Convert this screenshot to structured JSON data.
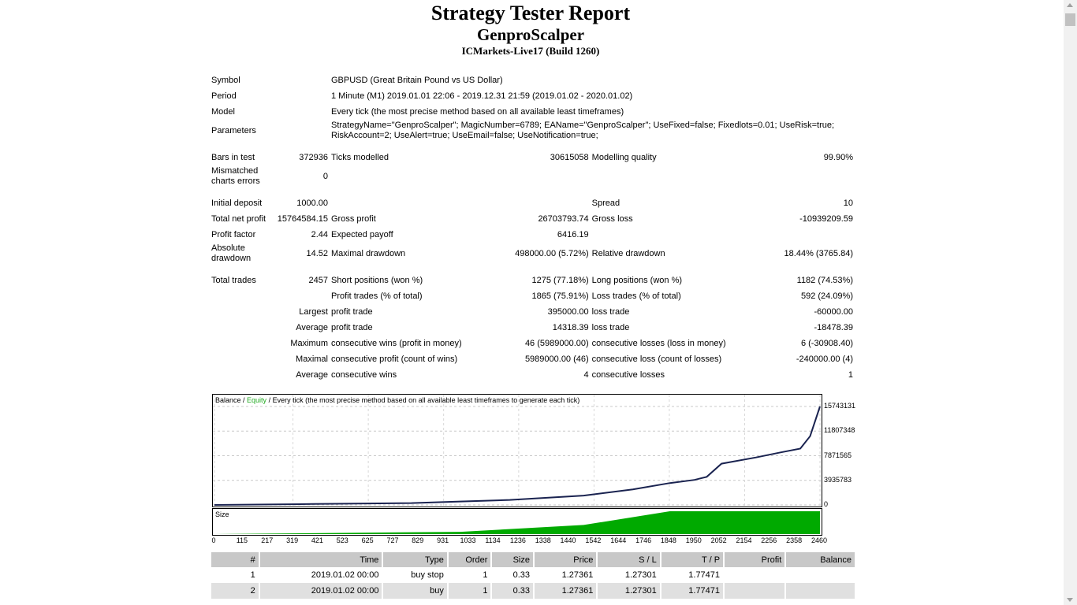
{
  "header": {
    "title": "Strategy Tester Report",
    "expert": "GenproScalper",
    "server": "ICMarkets-Live17 (Build 1260)"
  },
  "info": {
    "symbol_label": "Symbol",
    "symbol_value": "GBPUSD (Great Britain Pound vs US Dollar)",
    "period_label": "Period",
    "period_value": "1 Minute (M1) 2019.01.01 22:06 - 2019.12.31 21:59 (2019.01.02 - 2020.01.02)",
    "model_label": "Model",
    "model_value": "Every tick (the most precise method based on all available least timeframes)",
    "params_label": "Parameters",
    "params_value": "StrategyName=\"GenproScalper\"; MagicNumber=6789; EAName=\"GenproScalper\"; UseFixed=false; Fixedlots=0.01; UseRisk=true; RiskAccount=2; UseAlert=true; UseEmail=false; UseNotification=true;"
  },
  "stats": {
    "bars_label": "Bars in test",
    "bars": "372936",
    "ticks_label": "Ticks modelled",
    "ticks": "30615058",
    "quality_label": "Modelling quality",
    "quality": "99.90%",
    "mismatch_label": "Mismatched charts errors",
    "mismatch": "0",
    "deposit_label": "Initial deposit",
    "deposit": "1000.00",
    "spread_label": "Spread",
    "spread": "10",
    "netprofit_label": "Total net profit",
    "netprofit": "15764584.15",
    "grossprofit_label": "Gross profit",
    "grossprofit": "26703793.74",
    "grossloss_label": "Gross loss",
    "grossloss": "-10939209.59",
    "pf_label": "Profit factor",
    "pf": "2.44",
    "payoff_label": "Expected payoff",
    "payoff": "6416.19",
    "absdd_label": "Absolute drawdown",
    "absdd": "14.52",
    "maxdd_label": "Maximal drawdown",
    "maxdd": "498000.00 (5.72%)",
    "reldd_label": "Relative drawdown",
    "reldd": "18.44% (3765.84)",
    "trades_label": "Total trades",
    "trades": "2457",
    "short_label": "Short positions (won %)",
    "short": "1275 (77.18%)",
    "long_label": "Long positions (won %)",
    "long": "1182 (74.53%)",
    "ptrades_label": "Profit trades (% of total)",
    "ptrades": "1865 (75.91%)",
    "ltrades_label": "Loss trades (% of total)",
    "ltrades": "592 (24.09%)",
    "largest_label": "Largest",
    "lpt_label": "profit trade",
    "lpt": "395000.00",
    "llt_label": "loss trade",
    "llt": "-60000.00",
    "average_label": "Average",
    "apt_label": "profit trade",
    "apt": "14318.39",
    "alt_label": "loss trade",
    "alt": "-18478.39",
    "maximum_label": "Maximum",
    "mcw_label": "consecutive wins (profit in money)",
    "mcw": "46 (5989000.00)",
    "mcl_label": "consecutive losses (loss in money)",
    "mcl": "6 (-30908.40)",
    "maximal_label": "Maximal",
    "mcp_label": "consecutive profit (count of wins)",
    "mcp": "5989000.00 (46)",
    "mclc_label": "consecutive loss (count of losses)",
    "mclc": "-240000.00 (4)",
    "average2_label": "Average",
    "acw_label": "consecutive wins",
    "acw": "4",
    "acl_label": "consecutive losses",
    "acl": "1"
  },
  "chart_legend": {
    "balance": "Balance",
    "sep": " / ",
    "equity": "Equity",
    "rest": " / Every tick (the most precise method based on all available least timeframes to generate each tick)",
    "size": "Size"
  },
  "colors": {
    "balance": "#1a2350",
    "equity": "#22aa22",
    "size": "#00aa00"
  },
  "chart_data": {
    "type": "line",
    "title": "",
    "series": [
      {
        "name": "Balance",
        "x": [
          0,
          400,
          800,
          1200,
          1500,
          1700,
          1850,
          1950,
          2000,
          2060,
          2200,
          2300,
          2380,
          2420,
          2460
        ],
        "values": [
          1000,
          150000,
          300000,
          800000,
          1500000,
          2500000,
          3500000,
          4000000,
          4500000,
          6600000,
          7600000,
          8400000,
          9000000,
          11000000,
          15743131
        ]
      }
    ],
    "size_series": {
      "name": "Size",
      "x": [
        0,
        1000,
        1500,
        1850,
        2460
      ],
      "values": [
        0,
        0.1,
        0.4,
        1,
        1
      ]
    },
    "yticks": [
      "0",
      "3935783",
      "7871565",
      "11807348",
      "15743131"
    ],
    "xticks": [
      "0",
      "115",
      "217",
      "319",
      "421",
      "523",
      "625",
      "727",
      "829",
      "931",
      "1033",
      "1134",
      "1236",
      "1338",
      "1440",
      "1542",
      "1644",
      "1746",
      "1848",
      "1950",
      "2052",
      "2154",
      "2256",
      "2358",
      "2460"
    ],
    "ylim": [
      0,
      15743131
    ],
    "xlim": [
      0,
      2460
    ],
    "grid": true
  },
  "trades": {
    "headers": [
      "#",
      "Time",
      "Type",
      "Order",
      "Size",
      "Price",
      "S / L",
      "T / P",
      "Profit",
      "Balance"
    ],
    "rows": [
      [
        "1",
        "2019.01.02 00:00",
        "buy stop",
        "1",
        "0.33",
        "1.27361",
        "1.27301",
        "1.77471",
        "",
        ""
      ],
      [
        "2",
        "2019.01.02 00:00",
        "buy",
        "1",
        "0.33",
        "1.27361",
        "1.27301",
        "1.77471",
        "",
        ""
      ]
    ]
  }
}
